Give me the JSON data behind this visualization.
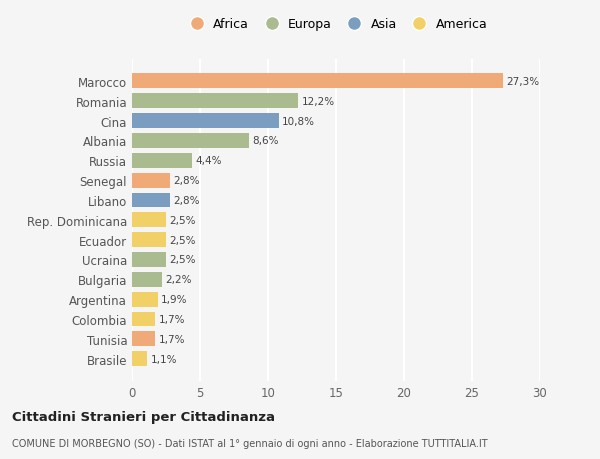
{
  "countries": [
    "Marocco",
    "Romania",
    "Cina",
    "Albania",
    "Russia",
    "Senegal",
    "Libano",
    "Rep. Dominicana",
    "Ecuador",
    "Ucraina",
    "Bulgaria",
    "Argentina",
    "Colombia",
    "Tunisia",
    "Brasile"
  ],
  "values": [
    27.3,
    12.2,
    10.8,
    8.6,
    4.4,
    2.8,
    2.8,
    2.5,
    2.5,
    2.5,
    2.2,
    1.9,
    1.7,
    1.7,
    1.1
  ],
  "labels": [
    "27,3%",
    "12,2%",
    "10,8%",
    "8,6%",
    "4,4%",
    "2,8%",
    "2,8%",
    "2,5%",
    "2,5%",
    "2,5%",
    "2,2%",
    "1,9%",
    "1,7%",
    "1,7%",
    "1,1%"
  ],
  "continents": [
    "Africa",
    "Europa",
    "Asia",
    "Europa",
    "Europa",
    "Africa",
    "Asia",
    "America",
    "America",
    "Europa",
    "Europa",
    "America",
    "America",
    "Africa",
    "America"
  ],
  "colors": {
    "Africa": "#F0AA78",
    "Europa": "#AABB8F",
    "Asia": "#7B9EC0",
    "America": "#F2D068"
  },
  "legend_order": [
    "Africa",
    "Europa",
    "Asia",
    "America"
  ],
  "xlim": [
    0,
    30
  ],
  "xticks": [
    0,
    5,
    10,
    15,
    20,
    25,
    30
  ],
  "title": "Cittadini Stranieri per Cittadinanza",
  "subtitle": "COMUNE DI MORBEGNO (SO) - Dati ISTAT al 1° gennaio di ogni anno - Elaborazione TUTTITALIA.IT",
  "background_color": "#f5f5f5",
  "grid_color": "#ffffff",
  "bar_height": 0.75
}
